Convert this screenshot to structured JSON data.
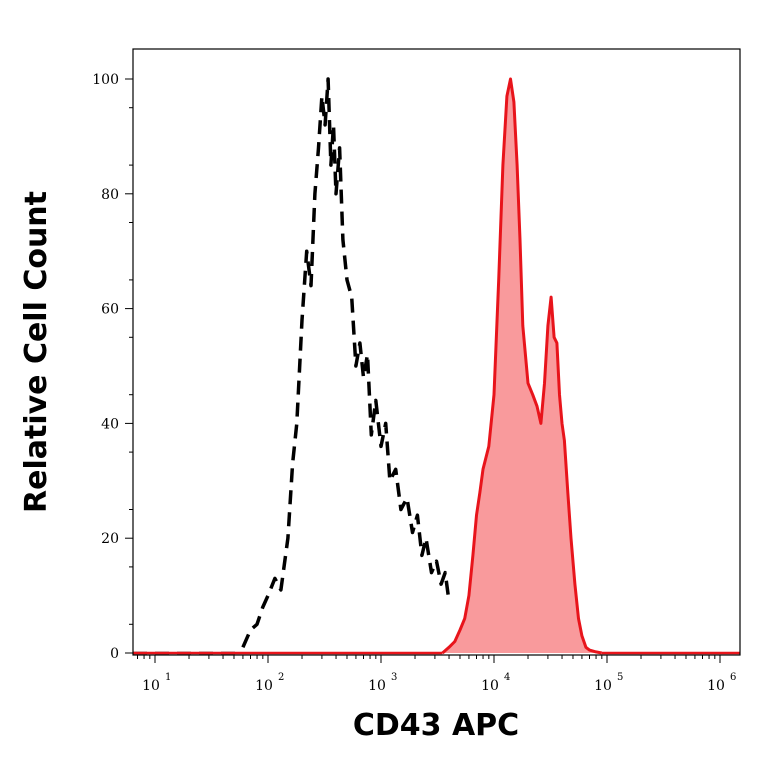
{
  "chart_data": {
    "type": "area",
    "xlabel": "CD43 APC",
    "ylabel": "Relative Cell Count",
    "xscale": "log",
    "xlim": [
      1,
      1000000
    ],
    "ylim": [
      0,
      100
    ],
    "x_ticks": [
      {
        "base": "10",
        "exp": "1"
      },
      {
        "base": "10",
        "exp": "2"
      },
      {
        "base": "10",
        "exp": "3"
      },
      {
        "base": "10",
        "exp": "4"
      },
      {
        "base": "10",
        "exp": "5"
      },
      {
        "base": "10",
        "exp": "6"
      }
    ],
    "y_ticks": [
      "0",
      "20",
      "40",
      "60",
      "80",
      "100"
    ],
    "grid": false,
    "series": [
      {
        "style": "dashed",
        "color": "#000000",
        "fill": "none",
        "x": [
          60,
          70,
          80,
          90,
          100,
          115,
          130,
          150,
          165,
          180,
          200,
          220,
          240,
          260,
          280,
          300,
          320,
          340,
          360,
          380,
          400,
          430,
          460,
          500,
          550,
          600,
          650,
          700,
          760,
          820,
          900,
          1000,
          1100,
          1200,
          1350,
          1500,
          1700,
          1900,
          2100,
          2300,
          2500,
          2800,
          3100,
          3400,
          3700,
          4000
        ],
        "y": [
          1,
          4,
          5,
          8,
          10,
          13,
          11,
          20,
          33,
          40,
          58,
          70,
          64,
          80,
          88,
          97,
          92,
          100,
          85,
          92,
          80,
          88,
          72,
          65,
          62,
          50,
          54,
          48,
          52,
          38,
          44,
          36,
          40,
          30,
          32,
          25,
          27,
          21,
          24,
          17,
          20,
          14,
          16,
          12,
          14,
          9
        ]
      },
      {
        "style": "solid",
        "color": "#e8141b",
        "fill": "#f99a9c",
        "x": [
          3500,
          4000,
          4500,
          5000,
          5500,
          6000,
          6500,
          7000,
          7500,
          8000,
          9000,
          10000,
          11000,
          12000,
          13000,
          14000,
          15000,
          16000,
          17000,
          18000,
          20000,
          22000,
          24000,
          26000,
          28000,
          30000,
          32000,
          34000,
          36000,
          38000,
          40000,
          42000,
          45000,
          48000,
          52000,
          56000,
          60000,
          65000,
          70000,
          80000,
          90000
        ],
        "y": [
          0,
          1,
          2,
          4,
          6,
          10,
          17,
          24,
          28,
          32,
          36,
          45,
          65,
          85,
          97,
          100,
          96,
          85,
          72,
          57,
          47,
          45,
          43,
          40,
          47,
          57,
          62,
          55,
          54,
          45,
          40,
          37,
          28,
          20,
          12,
          6,
          3,
          1,
          0.5,
          0.2,
          0
        ]
      }
    ]
  }
}
